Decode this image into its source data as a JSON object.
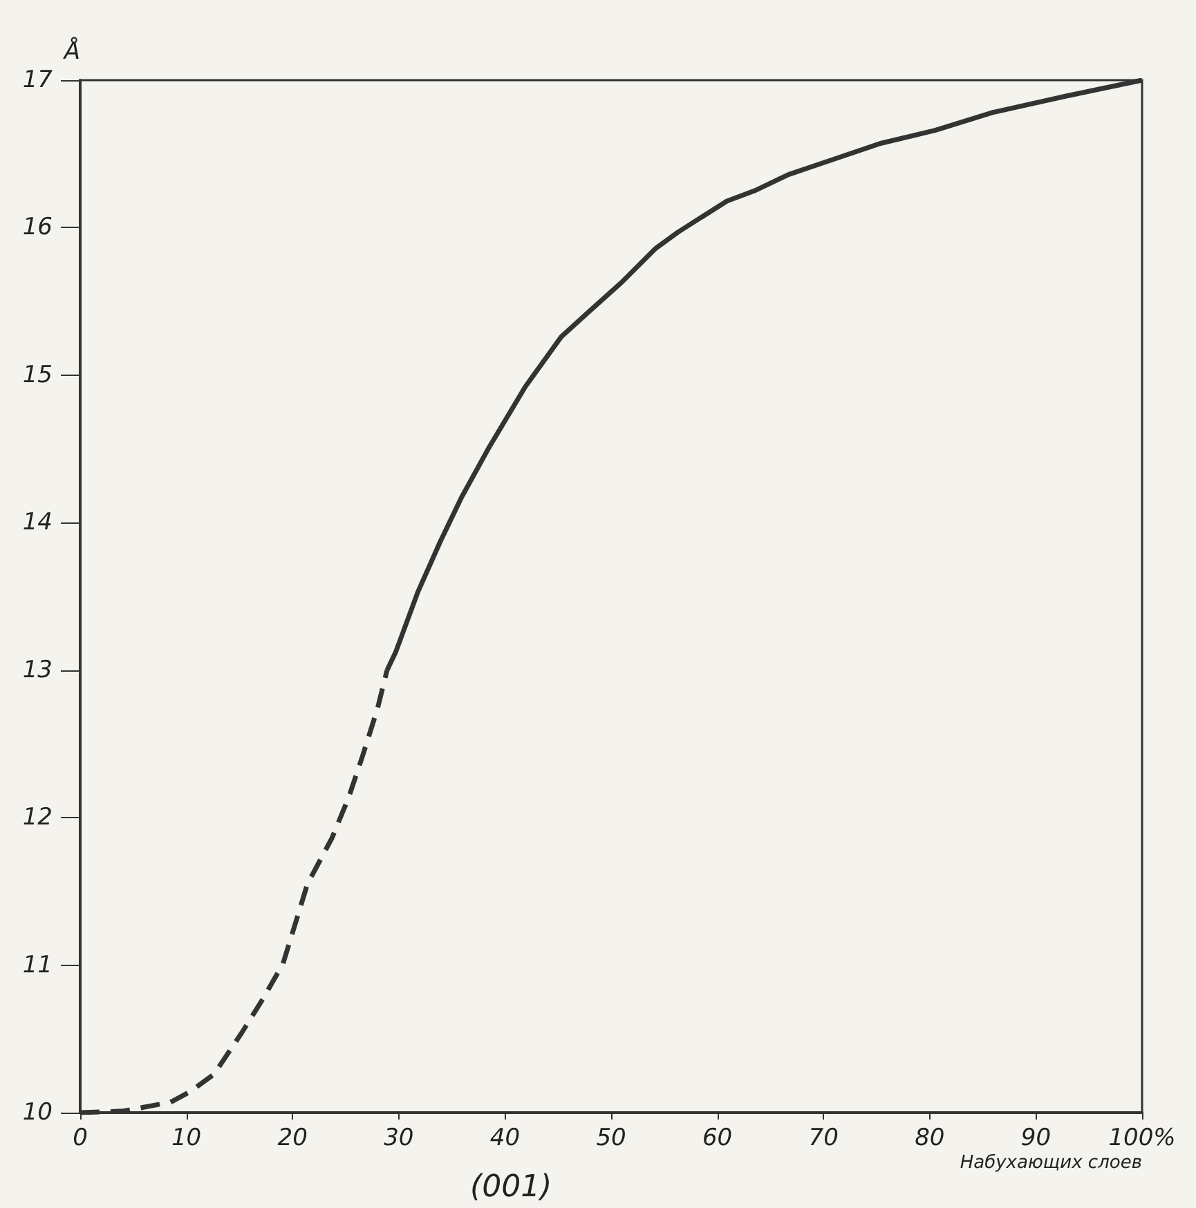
{
  "chart_data": {
    "type": "line",
    "ylabel": "Å",
    "xlabel": "Набухающих слоев",
    "annotations": [
      "(001)"
    ],
    "xlim": [
      0,
      100
    ],
    "ylim": [
      10,
      17
    ],
    "xticks": [
      0,
      10,
      20,
      30,
      40,
      50,
      60,
      70,
      80,
      90,
      {
        "value": 100,
        "label": "100%"
      }
    ],
    "yticks": [
      10,
      11,
      12,
      13,
      14,
      15,
      16,
      17
    ],
    "grid": false,
    "marker": "none",
    "series": [
      {
        "color": "#333333",
        "line_style": "dashed",
        "x": [
          0,
          4,
          8.5,
          10.3,
          12.6,
          15.2,
          17.2,
          19.1,
          21.4,
          23.7,
          25.3,
          26.6,
          28,
          28.9
        ],
        "values": [
          10,
          10.01,
          10.07,
          10.14,
          10.26,
          10.54,
          10.77,
          11.01,
          11.55,
          11.86,
          12.14,
          12.42,
          12.74,
          13
        ]
      },
      {
        "color": "#333333",
        "line_style": "solid",
        "x": [
          28.9,
          29.7,
          31.8,
          33.9,
          35.9,
          38.5,
          41.9,
          45.3,
          47.9,
          51,
          54.2,
          56.3,
          60.9,
          63.5,
          66.7,
          70.8,
          75.3,
          80.5,
          85.9,
          92.7,
          100
        ],
        "values": [
          13,
          13.12,
          13.53,
          13.87,
          14.17,
          14.51,
          14.92,
          15.26,
          15.43,
          15.63,
          15.86,
          15.97,
          16.18,
          16.25,
          16.36,
          16.46,
          16.57,
          16.66,
          16.78,
          16.89,
          17
        ]
      }
    ]
  }
}
